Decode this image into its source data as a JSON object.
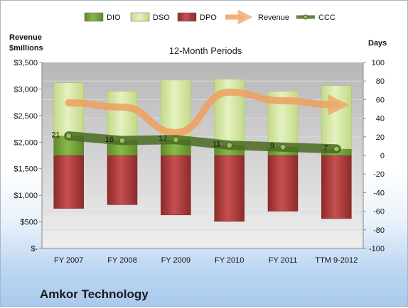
{
  "chart_data": {
    "type": "bar",
    "title": "12-Month Periods",
    "company": "Amkor Technology",
    "left_axis_title": [
      "Revenue",
      "$millions"
    ],
    "right_axis_title": "Days",
    "categories": [
      "FY 2007",
      "FY 2008",
      "FY 2009",
      "FY 2010",
      "FY 2011",
      "TTM 9-2012"
    ],
    "left_ticks": [
      "$-",
      "$500",
      "$1,000",
      "$1,500",
      "$2,000",
      "$2,500",
      "$3,000",
      "$3,500"
    ],
    "right_ticks": [
      "-100",
      "-80",
      "-60",
      "-40",
      "-20",
      "0",
      "20",
      "40",
      "60",
      "80",
      "100"
    ],
    "ylim_left": [
      0,
      3500
    ],
    "ylim_right": [
      -100,
      100
    ],
    "legend": [
      "DIO",
      "DSO",
      "DPO",
      "Revenue",
      "CCC"
    ],
    "colors": {
      "DIO": "#77a33b",
      "DSO": "#d6e8a6",
      "DPO": "#a83838",
      "Revenue": "#f0a060",
      "CCC": "#5d7a2c"
    },
    "series": [
      {
        "name": "DIO",
        "axis": "right",
        "values": [
          21,
          16,
          17,
          11,
          9,
          7
        ]
      },
      {
        "name": "DSO",
        "axis": "right",
        "values": [
          57,
          53,
          64,
          71,
          60,
          68
        ]
      },
      {
        "name": "DPO",
        "axis": "right",
        "values": [
          -57,
          -53,
          -64,
          -71,
          -60,
          -68
        ]
      },
      {
        "name": "Revenue",
        "axis": "left",
        "values": [
          2740,
          2660,
          2180,
          2940,
          2780,
          2700
        ]
      },
      {
        "name": "CCC",
        "axis": "right",
        "values": [
          21,
          16,
          17,
          11,
          9,
          7
        ]
      }
    ],
    "ccc_labels": [
      "21",
      "16",
      "17",
      "11",
      "9",
      "7"
    ]
  }
}
